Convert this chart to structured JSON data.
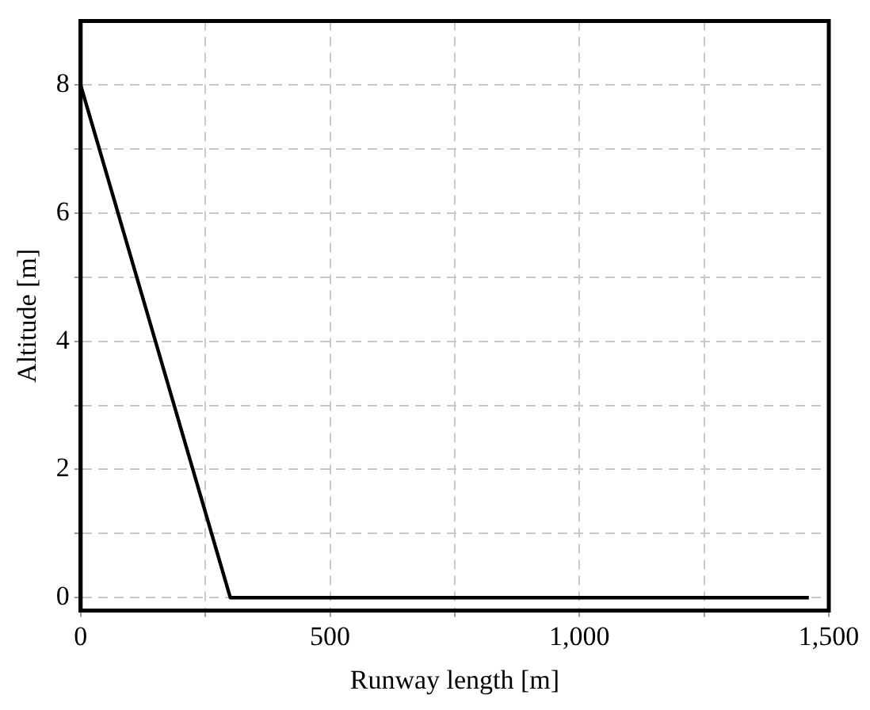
{
  "chart_data": {
    "type": "line",
    "xlabel": "Runway length [m]",
    "ylabel": "Altitude [m]",
    "x": [
      0,
      300,
      1460
    ],
    "series": [
      {
        "color": "#000000",
        "values": [
          8,
          0,
          0
        ]
      }
    ],
    "xlim": [
      0,
      1500
    ],
    "xticks": [
      0,
      {
        "value": 250,
        "label": null
      },
      500,
      {
        "value": 750,
        "label": null
      },
      {
        "value": 1000,
        "label": "1,000"
      },
      {
        "value": 1250,
        "label": null
      },
      {
        "value": 1500,
        "label": "1,500"
      }
    ],
    "ylim": [
      -0.2,
      9
    ],
    "yticks": [
      0,
      {
        "value": 1,
        "label": null
      },
      2,
      {
        "value": 3,
        "label": null
      },
      4,
      {
        "value": 5,
        "label": null
      },
      6,
      {
        "value": 7,
        "label": null
      },
      8
    ],
    "grid": true,
    "legend": false,
    "marker": "none",
    "line_style": "solid"
  }
}
